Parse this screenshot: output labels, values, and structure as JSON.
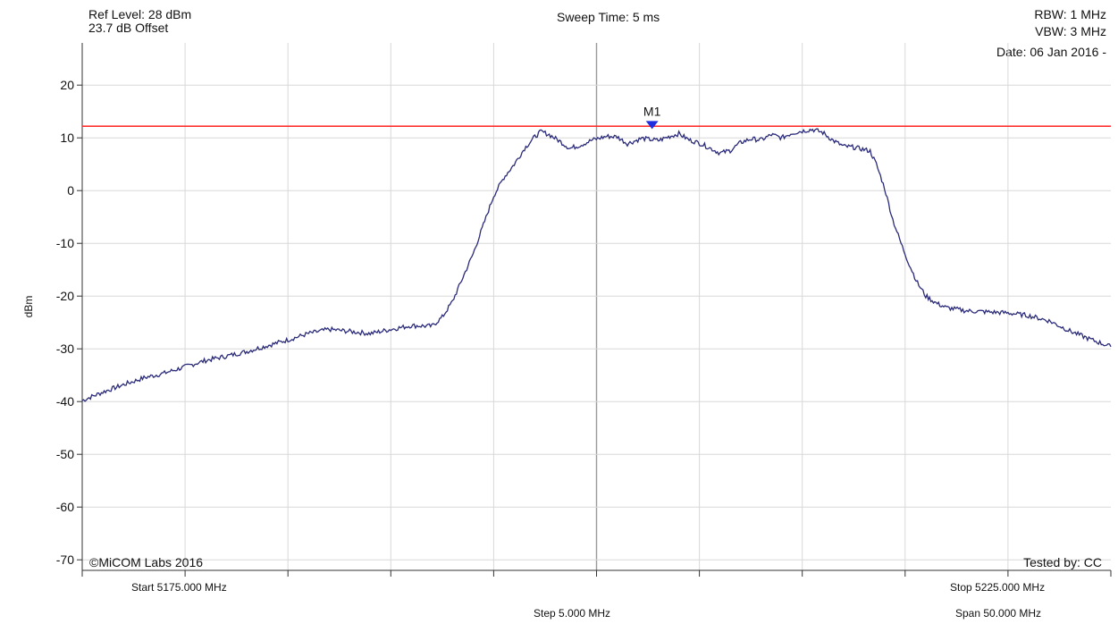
{
  "header": {
    "ref_level": "Ref Level: 28 dBm",
    "offset": "23.7 dB Offset",
    "sweep_time": "Sweep Time: 5 ms",
    "rbw": "RBW: 1 MHz",
    "vbw": "VBW: 3 MHz",
    "date": "Date: 06 Jan 2016 -"
  },
  "footer": {
    "start": "Start 5175.000 MHz",
    "step": "Step 5.000 MHz",
    "stop": "Stop 5225.000 MHz",
    "span": "Span 50.000 MHz"
  },
  "chart_data": {
    "type": "line",
    "ylabel": "dBm",
    "xlabel": "",
    "title": "",
    "xlim": [
      5175,
      5225
    ],
    "ylim": [
      -72,
      28
    ],
    "yticks": [
      20,
      10,
      0,
      -10,
      -20,
      -30,
      -40,
      -50,
      -60,
      -70
    ],
    "xgrid_step": 5,
    "grid": true,
    "limit_line": {
      "value": 12.2,
      "color": "#ff3030"
    },
    "trace_color": "#2a2a7a",
    "marker": {
      "label": "M1",
      "x": 5202.7,
      "y": 11.5,
      "color": "#1f2fe0"
    },
    "copyright": "©MiCOM Labs 2016",
    "tested_by": "Tested by: CC",
    "series": [
      {
        "points": [
          [
            5175.0,
            -39.8
          ],
          [
            5176.0,
            -38.2
          ],
          [
            5177.0,
            -36.8
          ],
          [
            5178.0,
            -35.5
          ],
          [
            5179.0,
            -34.6
          ],
          [
            5180.0,
            -33.4
          ],
          [
            5181.0,
            -32.2
          ],
          [
            5182.0,
            -31.4
          ],
          [
            5183.0,
            -30.5
          ],
          [
            5184.0,
            -29.4
          ],
          [
            5185.0,
            -28.3
          ],
          [
            5186.0,
            -27.1
          ],
          [
            5187.0,
            -26.3
          ],
          [
            5188.0,
            -26.7
          ],
          [
            5189.0,
            -27.1
          ],
          [
            5190.0,
            -26.3
          ],
          [
            5191.0,
            -25.6
          ],
          [
            5192.0,
            -25.7
          ],
          [
            5192.5,
            -24.0
          ],
          [
            5193.0,
            -21.0
          ],
          [
            5193.5,
            -16.5
          ],
          [
            5194.0,
            -12.0
          ],
          [
            5194.5,
            -6.5
          ],
          [
            5195.0,
            -1.0
          ],
          [
            5195.5,
            2.5
          ],
          [
            5196.0,
            5.0
          ],
          [
            5196.5,
            8.0
          ],
          [
            5197.0,
            10.2
          ],
          [
            5197.3,
            11.2
          ],
          [
            5197.7,
            10.6
          ],
          [
            5198.2,
            9.4
          ],
          [
            5198.7,
            8.0
          ],
          [
            5199.2,
            8.6
          ],
          [
            5199.8,
            9.6
          ],
          [
            5200.5,
            10.3
          ],
          [
            5201.0,
            10.2
          ],
          [
            5201.5,
            8.9
          ],
          [
            5202.2,
            9.9
          ],
          [
            5203.0,
            9.5
          ],
          [
            5203.5,
            10.2
          ],
          [
            5204.0,
            10.8
          ],
          [
            5204.5,
            9.6
          ],
          [
            5205.0,
            9.0
          ],
          [
            5205.5,
            8.1
          ],
          [
            5206.0,
            7.1
          ],
          [
            5206.5,
            7.6
          ],
          [
            5207.0,
            9.1
          ],
          [
            5207.5,
            9.8
          ],
          [
            5208.0,
            9.6
          ],
          [
            5208.5,
            10.6
          ],
          [
            5209.0,
            10.0
          ],
          [
            5209.5,
            10.9
          ],
          [
            5210.0,
            11.3
          ],
          [
            5210.5,
            11.6
          ],
          [
            5211.0,
            11.0
          ],
          [
            5211.5,
            9.5
          ],
          [
            5212.0,
            8.4
          ],
          [
            5212.5,
            8.2
          ],
          [
            5213.0,
            7.8
          ],
          [
            5213.3,
            7.5
          ],
          [
            5213.6,
            5.0
          ],
          [
            5214.0,
            0.5
          ],
          [
            5214.4,
            -5.5
          ],
          [
            5214.8,
            -10.0
          ],
          [
            5215.2,
            -14.0
          ],
          [
            5215.6,
            -17.5
          ],
          [
            5216.0,
            -20.0
          ],
          [
            5216.5,
            -21.3
          ],
          [
            5217.0,
            -22.2
          ],
          [
            5218.0,
            -22.8
          ],
          [
            5219.0,
            -23.0
          ],
          [
            5220.0,
            -23.2
          ],
          [
            5221.0,
            -23.7
          ],
          [
            5222.0,
            -24.7
          ],
          [
            5223.0,
            -26.6
          ],
          [
            5224.0,
            -28.2
          ],
          [
            5225.0,
            -29.6
          ]
        ]
      }
    ]
  }
}
